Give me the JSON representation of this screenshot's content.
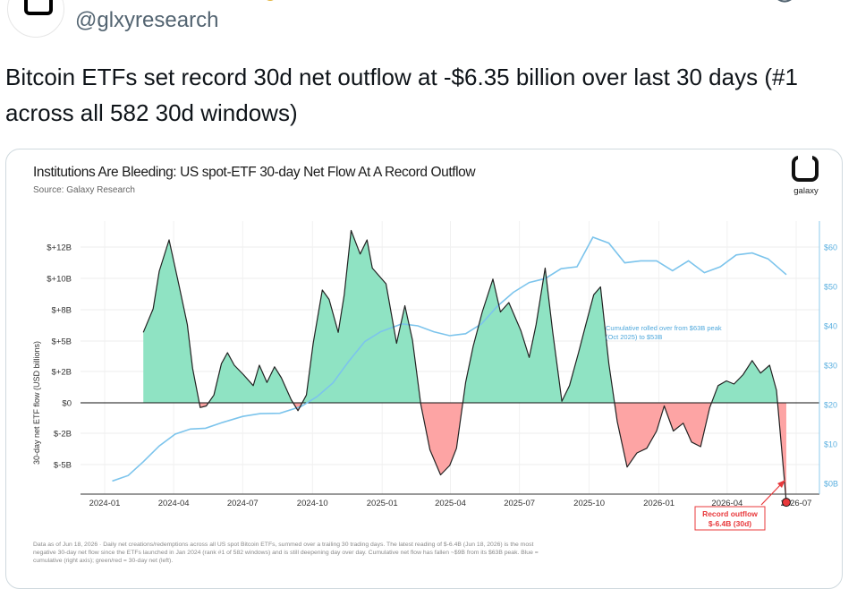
{
  "tweet": {
    "handle": "@glxyresearch",
    "text": "Bitcoin ETFs set record 30d net outflow at -$6.35 billion over last 30 days (#1 across all 582 30d windows)"
  },
  "colors": {
    "inflow_fill": "#8fe3c3",
    "outflow_fill": "#fda4a4",
    "cumulative_line": "#7cc4ec",
    "flow_line": "#222222",
    "record_marker": "#e8383b"
  },
  "chart_data": {
    "type": "area",
    "title": "Institutions Are Bleeding: US spot-ETF 30-day Net Flow At A Record Outflow",
    "subtitle": "Source: Galaxy Research",
    "logo_text": "galaxy",
    "ylabel": "30-day net ETF flow (USD billions)",
    "x_ticks": [
      "2024-01",
      "2024-04",
      "2024-07",
      "2024-10",
      "2025-01",
      "2025-04",
      "2025-07",
      "2025-10",
      "2026-01",
      "2026-04",
      "2026-07"
    ],
    "y_ticks": [
      "$+12B",
      "$+10B",
      "$+8B",
      "$+5B",
      "$+2B",
      "$0",
      "$-2B",
      "$-5B"
    ],
    "y_right_ticks": [
      "$60",
      "$50",
      "$40",
      "$30",
      "$20",
      "$10",
      "$0B"
    ],
    "ylim": [
      -6.5,
      12.8
    ],
    "ylim_right": [
      0,
      62
    ],
    "grid": true,
    "series": [
      {
        "name": "30-day net flow",
        "dates": [
          "2024-02-21",
          "2024-03-05",
          "2024-03-13",
          "2024-03-26",
          "2024-04-08",
          "2024-04-19",
          "2024-04-26",
          "2024-05-06",
          "2024-05-14",
          "2024-05-24",
          "2024-06-03",
          "2024-06-11",
          "2024-06-20",
          "2024-07-02",
          "2024-07-15",
          "2024-07-23",
          "2024-08-02",
          "2024-08-12",
          "2024-08-21",
          "2024-09-03",
          "2024-09-12",
          "2024-09-23",
          "2024-10-02",
          "2024-10-14",
          "2024-10-23",
          "2024-11-04",
          "2024-11-12",
          "2024-11-21",
          "2024-12-03",
          "2024-12-12",
          "2024-12-19",
          "2025-01-06",
          "2025-01-20",
          "2025-01-31",
          "2025-02-10",
          "2025-02-21",
          "2025-03-05",
          "2025-03-19",
          "2025-03-31",
          "2025-04-09",
          "2025-04-21",
          "2025-05-01",
          "2025-05-13",
          "2025-05-27",
          "2025-06-06",
          "2025-06-17",
          "2025-07-03",
          "2025-07-14",
          "2025-07-23",
          "2025-08-04",
          "2025-08-14",
          "2025-08-26",
          "2025-09-05",
          "2025-09-17",
          "2025-09-26",
          "2025-10-07",
          "2025-10-16",
          "2025-10-27",
          "2025-11-07",
          "2025-11-20",
          "2025-12-03",
          "2025-12-16",
          "2025-12-29",
          "2026-01-08",
          "2026-01-20",
          "2026-02-02",
          "2026-02-13",
          "2026-02-25",
          "2026-03-09",
          "2026-03-20",
          "2026-03-31",
          "2026-04-10",
          "2026-04-22",
          "2026-05-04",
          "2026-05-15",
          "2026-05-27",
          "2026-06-05",
          "2026-06-18"
        ],
        "values": [
          4.5,
          6.0,
          8.4,
          10.4,
          7.5,
          5.0,
          2.2,
          -0.3,
          -0.2,
          0.5,
          2.5,
          3.2,
          2.4,
          1.8,
          1.1,
          2.4,
          1.3,
          2.3,
          1.6,
          0.2,
          -0.5,
          0.5,
          3.8,
          7.2,
          6.6,
          4.5,
          6.9,
          11.0,
          9.5,
          10.4,
          8.6,
          7.6,
          3.8,
          6.2,
          4.0,
          -0.1,
          -3.0,
          -4.6,
          -4.0,
          -2.9,
          1.3,
          3.6,
          5.8,
          7.9,
          5.8,
          6.4,
          4.6,
          2.9,
          5.0,
          8.6,
          4.5,
          0.1,
          1.1,
          3.2,
          4.9,
          6.9,
          7.4,
          2.5,
          -1.2,
          -4.1,
          -3.2,
          -2.9,
          -1.8,
          -0.2,
          -1.8,
          -1.3,
          -2.5,
          -2.8,
          -0.3,
          1.1,
          1.4,
          1.2,
          1.8,
          2.7,
          1.9,
          2.4,
          0.8,
          -6.35
        ]
      },
      {
        "name": "Cumulative net flow",
        "dates": [
          "2024-01-11",
          "2024-02-01",
          "2024-02-21",
          "2024-03-13",
          "2024-04-03",
          "2024-04-23",
          "2024-05-13",
          "2024-06-05",
          "2024-07-01",
          "2024-07-24",
          "2024-08-19",
          "2024-09-16",
          "2024-10-07",
          "2024-10-28",
          "2024-11-18",
          "2024-12-09",
          "2024-12-30",
          "2025-01-27",
          "2025-02-17",
          "2025-03-10",
          "2025-03-31",
          "2025-04-21",
          "2025-05-12",
          "2025-06-02",
          "2025-06-23",
          "2025-07-14",
          "2025-08-04",
          "2025-08-25",
          "2025-09-15",
          "2025-10-06",
          "2025-10-27",
          "2025-11-17",
          "2025-12-08",
          "2025-12-29",
          "2026-01-19",
          "2026-02-09",
          "2026-03-02",
          "2026-03-23",
          "2026-04-13",
          "2026-05-04",
          "2026-05-25",
          "2026-06-18"
        ],
        "values": [
          0.6,
          2.0,
          5.5,
          9.5,
          12.5,
          13.8,
          14.0,
          15.5,
          17.0,
          17.7,
          17.8,
          19.5,
          22.0,
          25.5,
          31.0,
          36.0,
          38.5,
          40.5,
          40.0,
          38.5,
          37.5,
          38.0,
          40.5,
          45.0,
          48.5,
          51.0,
          52.0,
          54.5,
          55.0,
          62.5,
          61.0,
          56.0,
          56.5,
          56.5,
          54.0,
          56.5,
          53.5,
          55.0,
          58.0,
          58.5,
          57.0,
          53.0
        ]
      }
    ],
    "annotations": [
      {
        "text_lines": [
          "Cumulative rolled over from $63B peak",
          "(Oct 2025) to $53B"
        ]
      },
      {
        "text_lines": [
          "Record outflow",
          "$-6.4B (30d)"
        ]
      }
    ],
    "footnote_lines": [
      "Data as of Jun 18, 2026 · Daily net creations/redemptions across all US spot Bitcoin ETFs, summed over a trailing 30 trading days. The latest reading of $-6.4B (Jun 18, 2026) is the most",
      "negative 30-day net flow since the ETFs launched in Jan 2024 (rank #1 of 582 windows) and is still deepening day over day. Cumulative net flow has fallen ~$9B from its $63B peak. Blue =",
      "cumulative (right axis); green/red = 30-day net (left)."
    ]
  }
}
